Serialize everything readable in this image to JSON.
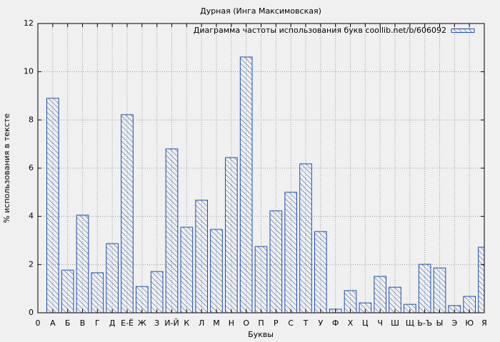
{
  "chart_data": {
    "type": "bar",
    "title": "Дурная (Инга Максимовская)",
    "x_label": "Буквы",
    "y_label": "% использования в тексте",
    "x": [
      1,
      2,
      3,
      4,
      5,
      6,
      7,
      8,
      9,
      10,
      11,
      12,
      13,
      14,
      15,
      16,
      17,
      18,
      19,
      20,
      21,
      22,
      23,
      24,
      25,
      26,
      27,
      28,
      29,
      30
    ],
    "series": [
      {
        "name": "Диаграмма частоты использования букв coollib.net/b/606092",
        "color": "#1f4fa8",
        "values": [
          8.9,
          1.77,
          4.05,
          1.66,
          2.87,
          8.22,
          1.09,
          1.71,
          6.8,
          3.55,
          4.67,
          3.46,
          6.44,
          10.61,
          2.75,
          4.23,
          5.0,
          6.18,
          3.37,
          0.15,
          0.92,
          0.41,
          1.51,
          1.06,
          0.35,
          2.01,
          1.86,
          0.3,
          0.68,
          2.72
        ]
      }
    ],
    "xlim": [
      0,
      30
    ],
    "xticks": [
      0,
      {
        "value": 1,
        "label": "А"
      },
      {
        "value": 2,
        "label": "Б"
      },
      {
        "value": 3,
        "label": "В"
      },
      {
        "value": 4,
        "label": "Г"
      },
      {
        "value": 5,
        "label": "Д"
      },
      {
        "value": 6,
        "label": "Е-Ё"
      },
      {
        "value": 7,
        "label": "Ж"
      },
      {
        "value": 8,
        "label": "З"
      },
      {
        "value": 9,
        "label": "И-Й"
      },
      {
        "value": 10,
        "label": "К"
      },
      {
        "value": 11,
        "label": "Л"
      },
      {
        "value": 12,
        "label": "М"
      },
      {
        "value": 13,
        "label": "Н"
      },
      {
        "value": 14,
        "label": "О"
      },
      {
        "value": 15,
        "label": "П"
      },
      {
        "value": 16,
        "label": "Р"
      },
      {
        "value": 17,
        "label": "С"
      },
      {
        "value": 18,
        "label": "Т"
      },
      {
        "value": 19,
        "label": "У"
      },
      {
        "value": 20,
        "label": "Ф"
      },
      {
        "value": 21,
        "label": "Х"
      },
      {
        "value": 22,
        "label": "Ц"
      },
      {
        "value": 23,
        "label": "Ч"
      },
      {
        "value": 24,
        "label": "Ш"
      },
      {
        "value": 25,
        "label": "Щ"
      },
      {
        "value": 26,
        "label": "Ь-Ъ"
      },
      {
        "value": 27,
        "label": "Ы"
      },
      {
        "value": 28,
        "label": "Э"
      },
      {
        "value": 29,
        "label": "Ю"
      },
      {
        "value": 30,
        "label": "Я"
      }
    ],
    "ylim": [
      0,
      12
    ],
    "yticks": [
      0,
      2,
      4,
      6,
      8,
      10,
      12
    ],
    "grid": true
  }
}
